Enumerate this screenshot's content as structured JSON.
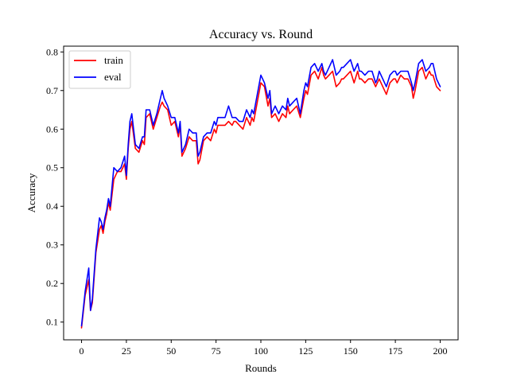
{
  "chart_data": {
    "type": "line",
    "title": "Accuracy vs. Round",
    "xlabel": "Rounds",
    "ylabel": "Accuracy",
    "xlim": [
      -10,
      210
    ],
    "ylim": [
      0.054,
      0.815
    ],
    "xticks": [
      0,
      25,
      50,
      75,
      100,
      125,
      150,
      175,
      200
    ],
    "yticks": [
      0.1,
      0.2,
      0.3,
      0.4,
      0.5,
      0.6,
      0.7,
      0.8
    ],
    "grid": false,
    "legend_position": "top-left",
    "x": [
      0,
      2,
      4,
      5,
      6,
      8,
      10,
      11,
      12,
      13,
      14,
      15,
      16,
      18,
      20,
      22,
      24,
      25,
      26,
      27,
      28,
      30,
      32,
      34,
      35,
      36,
      38,
      40,
      42,
      44,
      45,
      46,
      48,
      50,
      52,
      54,
      55,
      56,
      58,
      60,
      62,
      64,
      65,
      66,
      68,
      70,
      72,
      74,
      75,
      76,
      78,
      80,
      82,
      84,
      85,
      86,
      88,
      90,
      92,
      94,
      95,
      96,
      98,
      100,
      102,
      104,
      105,
      106,
      108,
      110,
      112,
      114,
      115,
      116,
      118,
      120,
      122,
      124,
      125,
      126,
      128,
      130,
      132,
      134,
      135,
      136,
      138,
      140,
      142,
      144,
      145,
      146,
      148,
      150,
      152,
      154,
      155,
      156,
      158,
      160,
      162,
      164,
      165,
      166,
      168,
      170,
      172,
      174,
      175,
      176,
      178,
      180,
      182,
      184,
      185,
      186,
      188,
      190,
      192,
      194,
      195,
      196,
      198,
      200
    ],
    "series": [
      {
        "name": "train",
        "color": "#ff0000",
        "values": [
          0.085,
          0.17,
          0.21,
          0.13,
          0.15,
          0.28,
          0.34,
          0.35,
          0.33,
          0.36,
          0.38,
          0.41,
          0.39,
          0.47,
          0.49,
          0.49,
          0.51,
          0.47,
          0.55,
          0.6,
          0.62,
          0.55,
          0.54,
          0.57,
          0.56,
          0.63,
          0.64,
          0.6,
          0.63,
          0.66,
          0.67,
          0.66,
          0.65,
          0.61,
          0.62,
          0.58,
          0.61,
          0.53,
          0.55,
          0.58,
          0.57,
          0.57,
          0.51,
          0.52,
          0.57,
          0.58,
          0.57,
          0.6,
          0.59,
          0.61,
          0.61,
          0.61,
          0.62,
          0.61,
          0.62,
          0.62,
          0.61,
          0.6,
          0.63,
          0.61,
          0.63,
          0.62,
          0.67,
          0.72,
          0.71,
          0.66,
          0.68,
          0.63,
          0.64,
          0.62,
          0.64,
          0.63,
          0.66,
          0.64,
          0.65,
          0.66,
          0.63,
          0.68,
          0.7,
          0.69,
          0.74,
          0.75,
          0.73,
          0.76,
          0.74,
          0.73,
          0.74,
          0.75,
          0.71,
          0.72,
          0.73,
          0.73,
          0.74,
          0.75,
          0.72,
          0.75,
          0.73,
          0.73,
          0.72,
          0.73,
          0.73,
          0.71,
          0.72,
          0.73,
          0.71,
          0.69,
          0.72,
          0.73,
          0.73,
          0.72,
          0.74,
          0.73,
          0.73,
          0.71,
          0.68,
          0.7,
          0.75,
          0.76,
          0.73,
          0.75,
          0.74,
          0.74,
          0.71,
          0.7
        ]
      },
      {
        "name": "eval",
        "color": "#0000ff",
        "values": [
          0.09,
          0.18,
          0.24,
          0.13,
          0.16,
          0.29,
          0.37,
          0.36,
          0.34,
          0.37,
          0.39,
          0.42,
          0.4,
          0.5,
          0.49,
          0.5,
          0.53,
          0.48,
          0.56,
          0.62,
          0.64,
          0.56,
          0.55,
          0.58,
          0.58,
          0.65,
          0.65,
          0.61,
          0.64,
          0.68,
          0.7,
          0.68,
          0.66,
          0.63,
          0.63,
          0.59,
          0.62,
          0.54,
          0.56,
          0.6,
          0.59,
          0.59,
          0.53,
          0.54,
          0.58,
          0.59,
          0.59,
          0.62,
          0.61,
          0.63,
          0.63,
          0.63,
          0.66,
          0.63,
          0.63,
          0.63,
          0.62,
          0.62,
          0.65,
          0.63,
          0.65,
          0.64,
          0.69,
          0.74,
          0.72,
          0.68,
          0.7,
          0.64,
          0.66,
          0.64,
          0.66,
          0.65,
          0.68,
          0.66,
          0.67,
          0.68,
          0.64,
          0.7,
          0.72,
          0.71,
          0.76,
          0.77,
          0.75,
          0.77,
          0.75,
          0.74,
          0.76,
          0.78,
          0.74,
          0.75,
          0.76,
          0.76,
          0.77,
          0.78,
          0.75,
          0.77,
          0.75,
          0.75,
          0.74,
          0.75,
          0.75,
          0.72,
          0.73,
          0.75,
          0.73,
          0.71,
          0.74,
          0.75,
          0.75,
          0.74,
          0.75,
          0.75,
          0.75,
          0.72,
          0.7,
          0.72,
          0.77,
          0.78,
          0.75,
          0.76,
          0.77,
          0.77,
          0.73,
          0.71
        ]
      }
    ]
  }
}
